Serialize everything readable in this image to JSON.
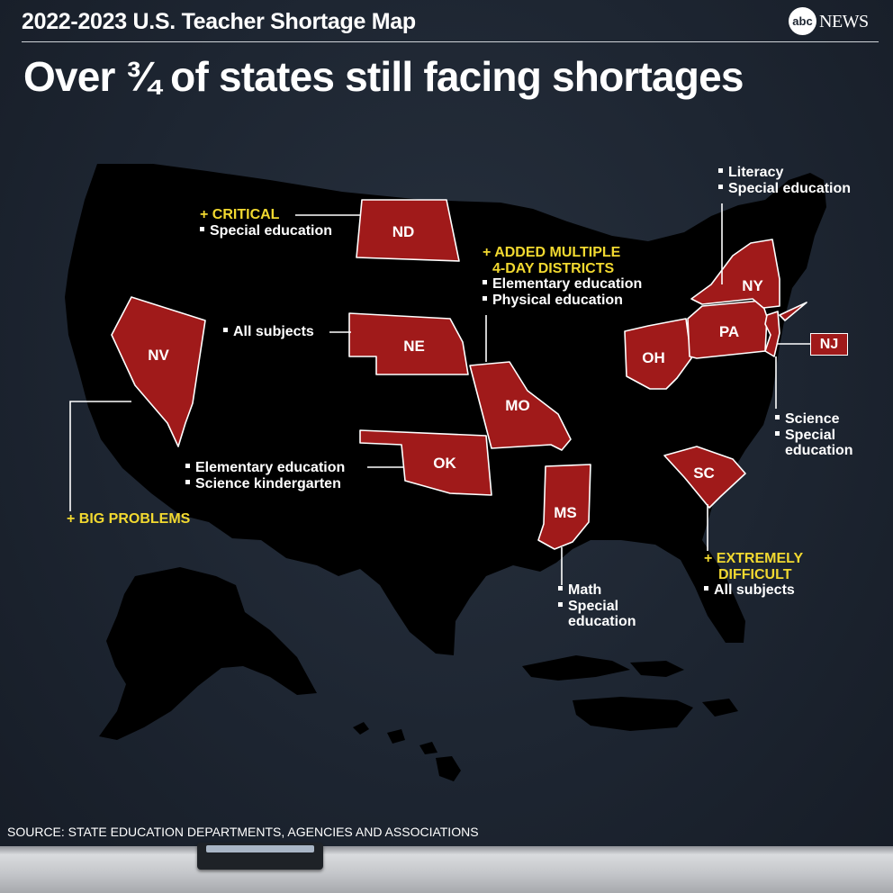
{
  "header": {
    "supertitle": "2022-2023 U.S. Teacher Shortage Map",
    "headline": "Over ¾ of states still facing shortages",
    "logo_mark": "abc",
    "logo_word": "NEWS"
  },
  "map_icon": "us-map-silhouette",
  "colors": {
    "background": "#1d2531",
    "land": "#000000",
    "highlight_state": "#a01a1a",
    "heading_accent": "#f2d930",
    "text": "#ffffff"
  },
  "states": [
    {
      "abbr": "ND",
      "heading": "+ CRITICAL",
      "items": [
        "Special education"
      ]
    },
    {
      "abbr": "NV",
      "heading": "+ BIG PROBLEMS",
      "items": []
    },
    {
      "abbr": "NE",
      "heading": "",
      "items": [
        "All subjects"
      ]
    },
    {
      "abbr": "MO",
      "heading": "+ ADDED MULTIPLE 4-DAY DISTRICTS",
      "heading_lines": [
        "+ ADDED MULTIPLE",
        "4-DAY DISTRICTS"
      ],
      "items": [
        "Elementary education",
        "Physical education"
      ]
    },
    {
      "abbr": "OK",
      "heading": "",
      "items": [
        "Elementary education",
        "Science kindergarten"
      ]
    },
    {
      "abbr": "MS",
      "heading": "",
      "items": [
        "Math",
        "Special education"
      ],
      "item_lines": [
        "Math",
        "Special",
        "education"
      ]
    },
    {
      "abbr": "SC",
      "heading": "+ EXTREMELY DIFFICULT",
      "heading_lines": [
        "+ EXTREMELY",
        "DIFFICULT"
      ],
      "items": [
        "All subjects"
      ]
    },
    {
      "abbr": "OH",
      "heading": "",
      "items": []
    },
    {
      "abbr": "PA",
      "heading": "",
      "items": []
    },
    {
      "abbr": "NY",
      "heading": "",
      "items": [
        "Literacy",
        "Special education"
      ]
    },
    {
      "abbr": "NJ",
      "heading": "",
      "items": [
        "Science",
        "Special education"
      ],
      "item_lines": [
        "Science",
        "Special",
        "education"
      ]
    }
  ],
  "source": "SOURCE: STATE EDUCATION DEPARTMENTS, AGENCIES AND ASSOCIATIONS"
}
